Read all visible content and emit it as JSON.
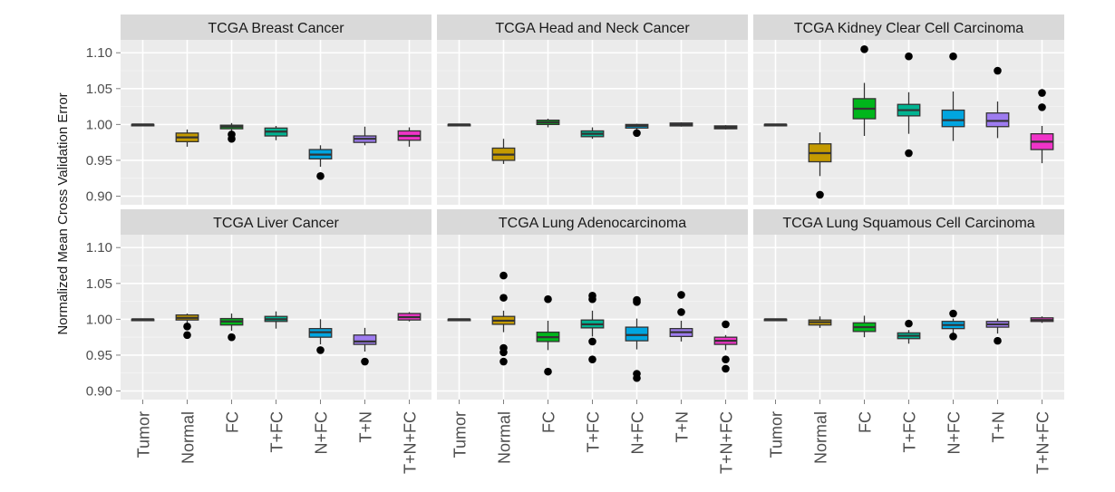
{
  "chart_data": {
    "type": "boxplot",
    "layout": "facet-grid 2x3",
    "ylabel": "Normalized Mean Cross Validation Error",
    "xlabel": "",
    "ylim": [
      0.888,
      1.118
    ],
    "yticks": [
      0.9,
      0.95,
      1.0,
      1.05,
      1.1
    ],
    "ytick_labels": [
      "0.90",
      "0.95",
      "1.00",
      "1.05",
      "1.10"
    ],
    "categories": [
      "Tumor",
      "Normal",
      "FC",
      "T+FC",
      "N+FC",
      "T+N",
      "T+N+FC"
    ],
    "colors": [
      "#f0f0f0",
      "#c49a00",
      "#00b51b",
      "#00b391",
      "#00a5e0",
      "#9e7cf0",
      "#f034c8"
    ],
    "grid": true,
    "legend": "none",
    "facets": [
      {
        "title": "TCGA Breast Cancer",
        "boxes": [
          {
            "q1": 1.0,
            "median": 1.0,
            "q3": 1.0,
            "lo": 1.0,
            "hi": 1.0,
            "outliers": []
          },
          {
            "q1": 0.976,
            "median": 0.982,
            "q3": 0.988,
            "lo": 0.969,
            "hi": 0.993,
            "outliers": []
          },
          {
            "q1": 0.994,
            "median": 0.997,
            "q3": 0.999,
            "lo": 0.99,
            "hi": 1.002,
            "outliers": [
              0.986,
              0.98
            ]
          },
          {
            "q1": 0.984,
            "median": 0.99,
            "q3": 0.995,
            "lo": 0.978,
            "hi": 0.998,
            "outliers": []
          },
          {
            "q1": 0.952,
            "median": 0.958,
            "q3": 0.965,
            "lo": 0.941,
            "hi": 0.971,
            "outliers": [
              0.928
            ]
          },
          {
            "q1": 0.975,
            "median": 0.98,
            "q3": 0.984,
            "lo": 0.971,
            "hi": 0.997,
            "outliers": []
          },
          {
            "q1": 0.978,
            "median": 0.984,
            "q3": 0.991,
            "lo": 0.969,
            "hi": 0.996,
            "outliers": []
          }
        ]
      },
      {
        "title": "TCGA Head and Neck Cancer",
        "boxes": [
          {
            "q1": 1.0,
            "median": 1.0,
            "q3": 1.0,
            "lo": 1.0,
            "hi": 1.0,
            "outliers": []
          },
          {
            "q1": 0.95,
            "median": 0.958,
            "q3": 0.967,
            "lo": 0.945,
            "hi": 0.98,
            "outliers": []
          },
          {
            "q1": 1.0,
            "median": 1.003,
            "q3": 1.006,
            "lo": 0.996,
            "hi": 1.008,
            "outliers": []
          },
          {
            "q1": 0.983,
            "median": 0.987,
            "q3": 0.991,
            "lo": 0.98,
            "hi": 0.996,
            "outliers": []
          },
          {
            "q1": 0.995,
            "median": 0.998,
            "q3": 1.0,
            "lo": 0.993,
            "hi": 1.001,
            "outliers": [
              0.988
            ]
          },
          {
            "q1": 0.998,
            "median": 1.0,
            "q3": 1.002,
            "lo": 0.997,
            "hi": 1.003,
            "outliers": []
          },
          {
            "q1": 0.994,
            "median": 0.996,
            "q3": 0.998,
            "lo": 0.993,
            "hi": 0.999,
            "outliers": []
          }
        ]
      },
      {
        "title": "TCGA Kidney Clear Cell Carcinoma",
        "boxes": [
          {
            "q1": 1.0,
            "median": 1.0,
            "q3": 1.0,
            "lo": 1.0,
            "hi": 1.0,
            "outliers": []
          },
          {
            "q1": 0.948,
            "median": 0.96,
            "q3": 0.973,
            "lo": 0.928,
            "hi": 0.989,
            "outliers": [
              0.902
            ]
          },
          {
            "q1": 1.008,
            "median": 1.022,
            "q3": 1.036,
            "lo": 0.984,
            "hi": 1.058,
            "outliers": [
              1.105
            ]
          },
          {
            "q1": 1.012,
            "median": 1.02,
            "q3": 1.028,
            "lo": 0.987,
            "hi": 1.045,
            "outliers": [
              1.095,
              0.96
            ]
          },
          {
            "q1": 0.997,
            "median": 1.006,
            "q3": 1.02,
            "lo": 0.977,
            "hi": 1.046,
            "outliers": [
              1.095
            ]
          },
          {
            "q1": 0.997,
            "median": 1.005,
            "q3": 1.016,
            "lo": 0.981,
            "hi": 1.032,
            "outliers": [
              1.075
            ]
          },
          {
            "q1": 0.965,
            "median": 0.976,
            "q3": 0.987,
            "lo": 0.946,
            "hi": 0.998,
            "outliers": [
              1.044,
              1.024
            ]
          }
        ]
      },
      {
        "title": "TCGA Liver Cancer",
        "boxes": [
          {
            "q1": 1.0,
            "median": 1.0,
            "q3": 1.0,
            "lo": 1.0,
            "hi": 1.0,
            "outliers": []
          },
          {
            "q1": 0.999,
            "median": 1.002,
            "q3": 1.006,
            "lo": 0.995,
            "hi": 1.008,
            "outliers": [
              0.99,
              0.978
            ]
          },
          {
            "q1": 0.992,
            "median": 0.997,
            "q3": 1.001,
            "lo": 0.984,
            "hi": 1.008,
            "outliers": [
              0.975
            ]
          },
          {
            "q1": 0.997,
            "median": 1.0,
            "q3": 1.004,
            "lo": 0.987,
            "hi": 1.011,
            "outliers": []
          },
          {
            "q1": 0.975,
            "median": 0.982,
            "q3": 0.987,
            "lo": 0.965,
            "hi": 1.0,
            "outliers": [
              0.957
            ]
          },
          {
            "q1": 0.965,
            "median": 0.969,
            "q3": 0.978,
            "lo": 0.955,
            "hi": 0.988,
            "outliers": [
              0.941
            ]
          },
          {
            "q1": 0.999,
            "median": 1.003,
            "q3": 1.008,
            "lo": 0.997,
            "hi": 1.01,
            "outliers": []
          }
        ]
      },
      {
        "title": "TCGA Lung Adenocarcinoma",
        "boxes": [
          {
            "q1": 1.0,
            "median": 1.0,
            "q3": 1.0,
            "lo": 1.0,
            "hi": 1.0,
            "outliers": []
          },
          {
            "q1": 0.993,
            "median": 0.998,
            "q3": 1.004,
            "lo": 0.982,
            "hi": 1.012,
            "outliers": [
              1.061,
              1.03,
              0.96,
              0.954,
              0.941
            ]
          },
          {
            "q1": 0.969,
            "median": 0.975,
            "q3": 0.982,
            "lo": 0.957,
            "hi": 0.998,
            "outliers": [
              1.028,
              0.927
            ]
          },
          {
            "q1": 0.988,
            "median": 0.993,
            "q3": 0.999,
            "lo": 0.976,
            "hi": 1.012,
            "outliers": [
              1.033,
              1.028,
              0.969,
              0.944
            ]
          },
          {
            "q1": 0.97,
            "median": 0.978,
            "q3": 0.989,
            "lo": 0.958,
            "hi": 1.001,
            "outliers": [
              1.027,
              1.024,
              0.924,
              0.918
            ]
          },
          {
            "q1": 0.976,
            "median": 0.982,
            "q3": 0.987,
            "lo": 0.969,
            "hi": 0.998,
            "outliers": [
              1.034,
              1.01
            ]
          },
          {
            "q1": 0.965,
            "median": 0.97,
            "q3": 0.975,
            "lo": 0.957,
            "hi": 0.978,
            "outliers": [
              0.993,
              0.944,
              0.931
            ]
          }
        ]
      },
      {
        "title": "TCGA Lung Squamous Cell Carcinoma",
        "boxes": [
          {
            "q1": 1.0,
            "median": 1.0,
            "q3": 1.0,
            "lo": 1.0,
            "hi": 1.0,
            "outliers": []
          },
          {
            "q1": 0.992,
            "median": 0.996,
            "q3": 0.999,
            "lo": 0.988,
            "hi": 1.004,
            "outliers": []
          },
          {
            "q1": 0.983,
            "median": 0.989,
            "q3": 0.995,
            "lo": 0.975,
            "hi": 1.005,
            "outliers": []
          },
          {
            "q1": 0.973,
            "median": 0.977,
            "q3": 0.981,
            "lo": 0.966,
            "hi": 0.985,
            "outliers": [
              0.994
            ]
          },
          {
            "q1": 0.987,
            "median": 0.992,
            "q3": 0.997,
            "lo": 0.98,
            "hi": 1.001,
            "outliers": [
              1.008,
              0.976
            ]
          },
          {
            "q1": 0.989,
            "median": 0.993,
            "q3": 0.997,
            "lo": 0.98,
            "hi": 1.001,
            "outliers": [
              0.97
            ]
          },
          {
            "q1": 0.997,
            "median": 0.999,
            "q3": 1.002,
            "lo": 0.995,
            "hi": 1.004,
            "outliers": []
          }
        ]
      }
    ]
  }
}
